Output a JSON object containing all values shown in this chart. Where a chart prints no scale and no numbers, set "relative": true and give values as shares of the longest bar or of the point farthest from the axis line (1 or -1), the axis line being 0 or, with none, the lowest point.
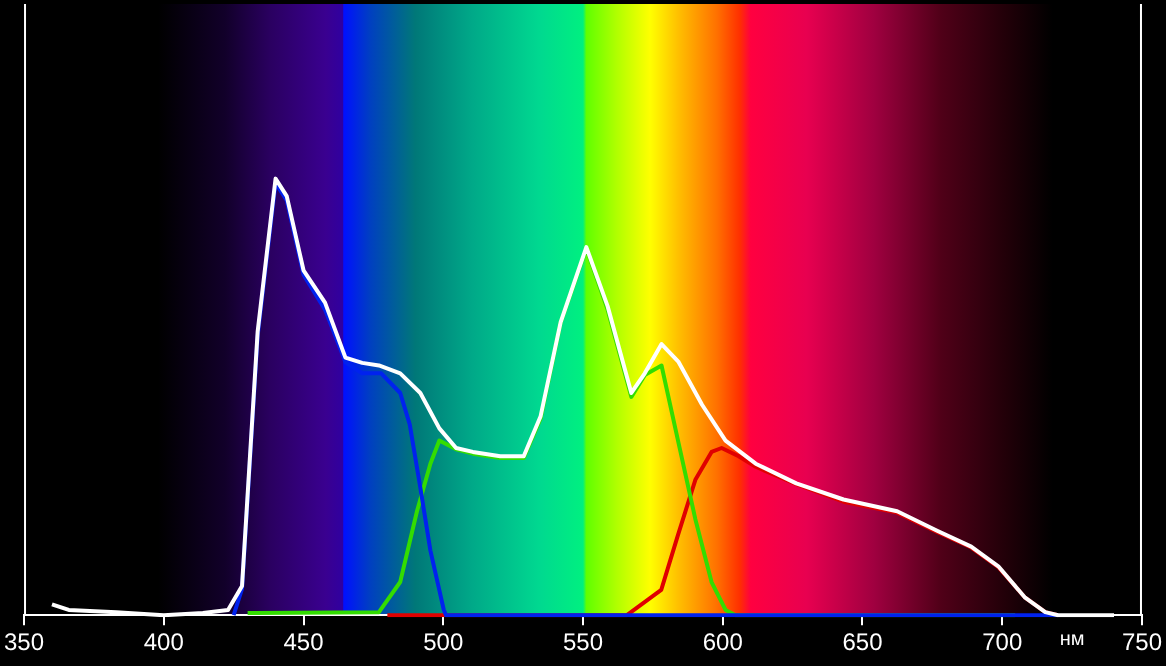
{
  "chart_data": {
    "type": "line",
    "xlabel": "нм",
    "relative": true,
    "xlim": [
      350,
      750
    ],
    "xticks": [
      350,
      400,
      450,
      500,
      550,
      600,
      650,
      700,
      750
    ],
    "marker": "none",
    "line_style": "solid",
    "legend": false,
    "series": [
      {
        "color": "#ffffff",
        "x": [
          360,
          366,
          383,
          400,
          414,
          423,
          428,
          433.6,
          440,
          444,
          450,
          457.7,
          465,
          471,
          477,
          484.6,
          491.8,
          498.6,
          504.6,
          510.6,
          520.4,
          528.8,
          534.8,
          542,
          551.2,
          558.8,
          567.3,
          572.1,
          578.1,
          584.1,
          592.6,
          601,
          611.8,
          626.3,
          643.2,
          662.4,
          676.9,
          688.9,
          698.6,
          708.2,
          715.4,
          720,
          740
        ],
        "values": [
          0.025,
          0.012,
          0.007,
          0,
          0.005,
          0.012,
          0.067,
          0.65,
          1,
          0.96,
          0.79,
          0.716,
          0.59,
          0.578,
          0.572,
          0.554,
          0.509,
          0.428,
          0.383,
          0.374,
          0.364,
          0.364,
          0.455,
          0.671,
          0.843,
          0.708,
          0.509,
          0.554,
          0.621,
          0.581,
          0.482,
          0.4,
          0.347,
          0.302,
          0.265,
          0.238,
          0.193,
          0.157,
          0.112,
          0.04,
          0.007,
          0,
          0
        ]
      },
      {
        "color": "#0022ee",
        "x": [
          425,
          428,
          433.6,
          440,
          444,
          450,
          457.7,
          465,
          471,
          477.8,
          484.6,
          488,
          491.8,
          495.4,
          500.2,
          501,
          720
        ],
        "values": [
          0,
          0.06,
          0.64,
          0.99,
          0.95,
          0.78,
          0.7,
          0.58,
          0.554,
          0.554,
          0.509,
          0.437,
          0.292,
          0.148,
          0.012,
          0,
          0
        ]
      },
      {
        "color": "#33dd00",
        "x": [
          430,
          477,
          484.6,
          490.6,
          495.4,
          498.6,
          504.6,
          510.6,
          520.4,
          528.8,
          534.8,
          542,
          551.2,
          558.8,
          567.3,
          572.1,
          578.1,
          584,
          590.2,
          596,
          601,
          604.6,
          704.6
        ],
        "values": [
          0.005,
          0.007,
          0.076,
          0.238,
          0.347,
          0.4,
          0.38,
          0.37,
          0.36,
          0.36,
          0.45,
          0.67,
          0.84,
          0.7,
          0.5,
          0.55,
          0.572,
          0.4,
          0.22,
          0.076,
          0.012,
          0,
          0
        ]
      },
      {
        "color": "#e00000",
        "x": [
          480,
          565.7,
          578,
          584,
          590.2,
          596,
          599.6,
          605.7,
          611.8,
          626.3,
          643.2,
          662.4,
          676.9,
          688.9,
          698.6,
          708.2,
          715.4,
          720
        ],
        "values": [
          0,
          0,
          0.058,
          0.184,
          0.31,
          0.374,
          0.383,
          0.364,
          0.34,
          0.3,
          0.26,
          0.235,
          0.19,
          0.155,
          0.11,
          0.04,
          0.007,
          0
        ]
      }
    ]
  }
}
